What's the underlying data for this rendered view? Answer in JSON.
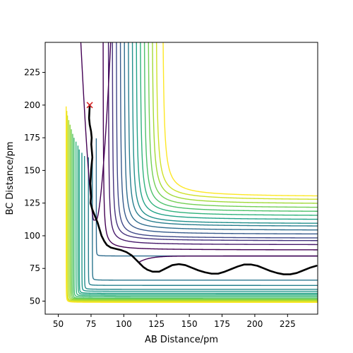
{
  "chart_data": {
    "type": "contour",
    "title": "",
    "xlabel": "AB Distance/pm",
    "ylabel": "BC Distance/pm",
    "xlim": [
      40,
      248
    ],
    "ylim": [
      40,
      248
    ],
    "x_ticks": [
      50,
      75,
      100,
      125,
      150,
      175,
      200,
      225
    ],
    "y_ticks": [
      50,
      75,
      100,
      125,
      150,
      175,
      200,
      225
    ],
    "grid": false,
    "legend": "none",
    "colormap": [
      "#440154",
      "#482878",
      "#3e4a89",
      "#31688e",
      "#26828e",
      "#1f9e89",
      "#35b779",
      "#6ece58",
      "#b5de2b",
      "#fde725"
    ],
    "contour_levels": [
      {
        "x_asym": 79,
        "y_asym": 84.5
      },
      {
        "x_asym": 76,
        "y_asym": 66
      },
      {
        "x_asym": 73,
        "y_asym": 62
      },
      {
        "x_asym": 70,
        "y_asym": 59
      },
      {
        "x_asym": 68,
        "y_asym": 57.5
      },
      {
        "x_asym": 66,
        "y_asym": 56
      },
      {
        "x_asym": 65,
        "y_asym": 55
      },
      {
        "x_asym": 63.5,
        "y_asym": 54
      },
      {
        "x_asym": 62,
        "y_asym": 53
      },
      {
        "x_asym": 61,
        "y_asym": 52
      },
      {
        "x_asym": 60,
        "y_asym": 51.5
      },
      {
        "x_asym": 59,
        "y_asym": 51
      },
      {
        "x_asym": 58,
        "y_asym": 50.5
      },
      {
        "x_asym": 57,
        "y_asym": 50
      },
      {
        "x_asym": 56.5,
        "y_asym": 49.5
      },
      {
        "x_asym": 56,
        "y_asym": 49
      }
    ],
    "inner_contours": [
      {
        "x_asym": 84,
        "y_asym": 89,
        "elbow": 0.7
      },
      {
        "x_asym": 88,
        "y_asym": 93,
        "elbow": 0.55
      },
      {
        "x_asym": 91,
        "y_asym": 96,
        "elbow": 0.5
      },
      {
        "x_asym": 94,
        "y_asym": 98,
        "elbow": 0.45
      },
      {
        "x_asym": 97,
        "y_asym": 101,
        "elbow": 0.45
      },
      {
        "x_asym": 100,
        "y_asym": 104,
        "elbow": 0.45
      },
      {
        "x_asym": 103,
        "y_asym": 107,
        "elbow": 0.45
      },
      {
        "x_asym": 106,
        "y_asym": 109,
        "elbow": 0.45
      },
      {
        "x_asym": 109,
        "y_asym": 112,
        "elbow": 0.45
      },
      {
        "x_asym": 112,
        "y_asym": 115,
        "elbow": 0.45
      },
      {
        "x_asym": 115,
        "y_asym": 118,
        "elbow": 0.45
      },
      {
        "x_asym": 118,
        "y_asym": 121,
        "elbow": 0.45
      },
      {
        "x_asym": 121,
        "y_asym": 124,
        "elbow": 0.45
      },
      {
        "x_asym": 124,
        "y_asym": 127,
        "elbow": 0.45
      },
      {
        "x_asym": 129,
        "y_asym": 129.5,
        "elbow": 0.45
      }
    ],
    "trajectory": [
      [
        74,
        200
      ],
      [
        73.8,
        196
      ],
      [
        73.5,
        190
      ],
      [
        74,
        185
      ],
      [
        75,
        180
      ],
      [
        75.5,
        175
      ],
      [
        75.2,
        170
      ],
      [
        75.6,
        165
      ],
      [
        76,
        160
      ],
      [
        75.5,
        155
      ],
      [
        75,
        150
      ],
      [
        74.8,
        145
      ],
      [
        74.5,
        140
      ],
      [
        74.8,
        135
      ],
      [
        75,
        130
      ],
      [
        74.6,
        125
      ],
      [
        76,
        120
      ],
      [
        78,
        115
      ],
      [
        80,
        110
      ],
      [
        81.5,
        105
      ],
      [
        83,
        100
      ],
      [
        85,
        96
      ],
      [
        87,
        93
      ],
      [
        90,
        91
      ],
      [
        94,
        90
      ],
      [
        98,
        89
      ],
      [
        102,
        87.5
      ],
      [
        106,
        85
      ],
      [
        109,
        82
      ],
      [
        112,
        79
      ],
      [
        115,
        76
      ],
      [
        118,
        74
      ],
      [
        122,
        72.5
      ],
      [
        127,
        72.5
      ],
      [
        132,
        75
      ],
      [
        137,
        77.5
      ],
      [
        142,
        78.3
      ],
      [
        147,
        77.5
      ],
      [
        152,
        75.5
      ],
      [
        157,
        73.5
      ],
      [
        162,
        72
      ],
      [
        167,
        71
      ],
      [
        172,
        71
      ],
      [
        177,
        72.5
      ],
      [
        182,
        74.5
      ],
      [
        187,
        76.5
      ],
      [
        192,
        78
      ],
      [
        197,
        78
      ],
      [
        202,
        77
      ],
      [
        207,
        75
      ],
      [
        212,
        73
      ],
      [
        217,
        71.5
      ],
      [
        222,
        70.5
      ],
      [
        227,
        70.5
      ],
      [
        232,
        71.5
      ],
      [
        237,
        73.5
      ],
      [
        242,
        75.5
      ],
      [
        247,
        77
      ]
    ],
    "start_marker": {
      "x": 74,
      "y": 200,
      "symbol": "x",
      "color": "#d62728"
    },
    "trajectory_color": "#000000"
  }
}
